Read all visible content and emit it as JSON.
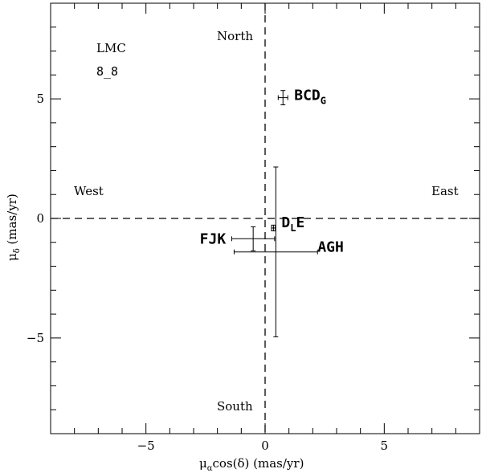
{
  "chart_data": {
    "type": "scatter",
    "title": "",
    "xlabel": "μαcos(δ) (mas/yr)",
    "xlabel_parts": {
      "mu": "μ",
      "sub": "α",
      "rest": "cos(δ)  (mas/yr)"
    },
    "ylabel": "μδ (mas/yr)",
    "ylabel_parts": {
      "mu": "μ",
      "sub": "δ",
      "rest": " (mas/yr)"
    },
    "xlim": [
      -9,
      9
    ],
    "ylim": [
      -9,
      9
    ],
    "x_ticks": [
      -5,
      0,
      5
    ],
    "y_ticks": [
      -5,
      0,
      5
    ],
    "x_tick_labels": [
      "−5",
      "0",
      "5"
    ],
    "y_tick_labels": [
      "−5",
      "0",
      "5"
    ],
    "minor_tick_step": 1,
    "reference_lines": {
      "x": 0,
      "y": 0,
      "style": "dashed"
    },
    "direction_labels": {
      "north": "North",
      "south": "South",
      "west": "West",
      "east": "East"
    },
    "annotation": {
      "line1": "LMC",
      "line2": "8_8"
    },
    "points": [
      {
        "name": "BCD",
        "sub": "G",
        "x": 0.75,
        "y": 5.05,
        "xerr": 0.2,
        "yerr": 0.3
      },
      {
        "name": "D",
        "sub": "L",
        "name2": "E",
        "x": 0.35,
        "y": -0.4,
        "xerr": 0.08,
        "yerr": 0.12
      },
      {
        "name": "FJK",
        "x": -0.5,
        "y": -0.85,
        "xerr": 0.9,
        "yerr": 0.5
      },
      {
        "name": "AGH",
        "x": 0.45,
        "y": -1.4,
        "xerr": 1.75,
        "yerr": 3.55
      }
    ]
  }
}
